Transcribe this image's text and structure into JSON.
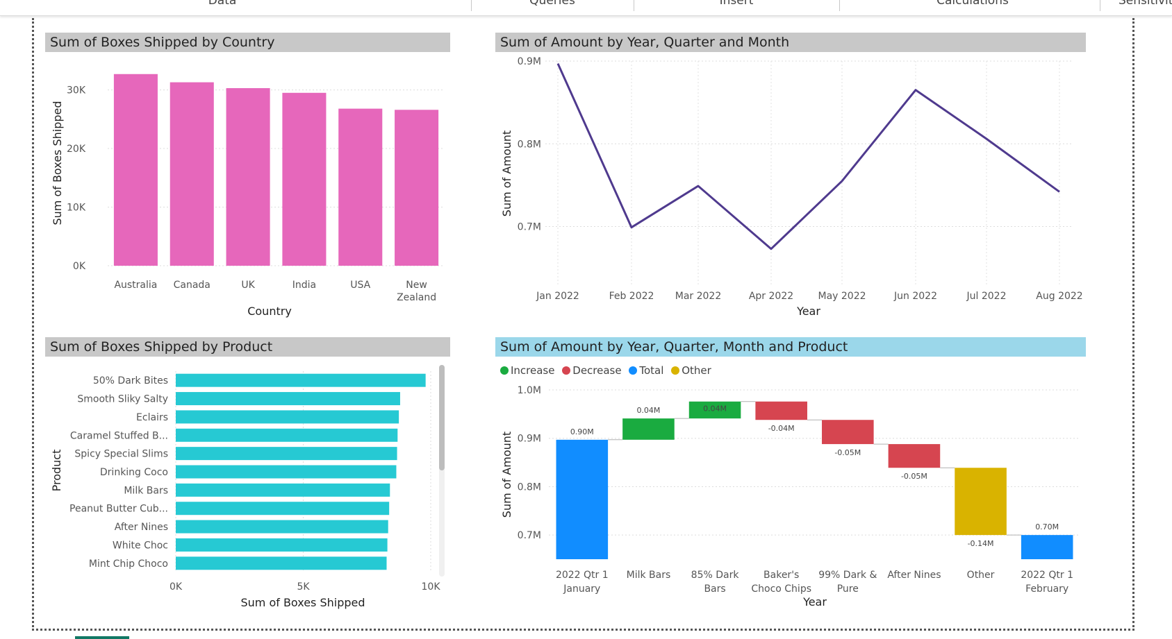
{
  "ribbon": {
    "tabs": [
      "Data",
      "Queries",
      "Insert",
      "Calculations",
      "Sensitivity"
    ]
  },
  "colors": {
    "bar_pink": "#e667bb",
    "bar_cyan": "#26c9d3",
    "line_purple": "#4f3a8e",
    "increase": "#1aab40",
    "decrease": "#d64550",
    "total": "#118dff",
    "other": "#d9b300",
    "title_grey": "#c8c8c8",
    "title_blue": "#9bd7ea"
  },
  "chart_data": [
    {
      "type": "bar",
      "title": "Sum of Boxes Shipped by Country",
      "xlabel": "Country",
      "ylabel": "Sum of Boxes Shipped",
      "categories": [
        "Australia",
        "Canada",
        "UK",
        "India",
        "USA",
        "New Zealand"
      ],
      "values": [
        32700,
        31300,
        30300,
        29500,
        26800,
        26600
      ],
      "ylim": [
        0,
        33500
      ],
      "yticks": [
        0,
        10000,
        20000,
        30000
      ],
      "ytick_labels": [
        "0K",
        "10K",
        "20K",
        "30K"
      ],
      "grid": true
    },
    {
      "type": "line",
      "title": "Sum of Amount by Year, Quarter and Month",
      "xlabel": "Year",
      "ylabel": "Sum of Amount",
      "categories": [
        "Jan 2022",
        "Feb 2022",
        "Mar 2022",
        "Apr 2022",
        "May 2022",
        "Jun 2022",
        "Jul 2022",
        "Aug 2022"
      ],
      "values": [
        0.897,
        0.699,
        0.749,
        0.673,
        0.755,
        0.865,
        0.806,
        0.742
      ],
      "ylim": [
        0.63,
        0.9
      ],
      "yticks": [
        0.7,
        0.8,
        0.9
      ],
      "ytick_labels": [
        "0.7M",
        "0.8M",
        "0.9M"
      ],
      "grid": true
    },
    {
      "type": "bar",
      "orientation": "horizontal",
      "title": "Sum of Boxes Shipped by Product",
      "xlabel": "Sum of Boxes Shipped",
      "ylabel": "Product",
      "categories": [
        "50% Dark Bites",
        "Smooth Sliky Salty",
        "Eclairs",
        "Caramel Stuffed B...",
        "Spicy Special Slims",
        "Drinking Coco",
        "Milk Bars",
        "Peanut Butter Cub...",
        "After Nines",
        "White Choc",
        "Mint Chip Choco"
      ],
      "values": [
        9800,
        8800,
        8750,
        8700,
        8680,
        8650,
        8400,
        8370,
        8330,
        8300,
        8270
      ],
      "xlim": [
        0,
        10000
      ],
      "xticks": [
        0,
        5000,
        10000
      ],
      "xtick_labels": [
        "0K",
        "5K",
        "10K"
      ],
      "grid": true
    },
    {
      "type": "waterfall",
      "title": "Sum of Amount by Year, Quarter, Month and Product",
      "xlabel": "Year",
      "ylabel": "Sum of Amount",
      "legend": [
        "Increase",
        "Decrease",
        "Total",
        "Other"
      ],
      "legend_position": "top-left",
      "categories": [
        "2022 Qtr 1 January",
        "Milk Bars",
        "85% Dark Bars",
        "Baker's Choco Chips",
        "99% Dark & Pure",
        "After Nines",
        "Other",
        "2022 Qtr 1 February"
      ],
      "category_lines": [
        [
          "2022 Qtr 1",
          "January"
        ],
        [
          "Milk Bars"
        ],
        [
          "85% Dark",
          "Bars"
        ],
        [
          "Baker's",
          "Choco Chips"
        ],
        [
          "99% Dark &",
          "Pure"
        ],
        [
          "After Nines"
        ],
        [
          "Other"
        ],
        [
          "2022 Qtr 1",
          "February"
        ]
      ],
      "kinds": [
        "total",
        "increase",
        "increase",
        "decrease",
        "decrease",
        "decrease",
        "other",
        "total"
      ],
      "values": [
        0.897,
        0.044,
        0.035,
        -0.038,
        -0.05,
        -0.049,
        -0.139,
        0.7
      ],
      "data_labels": [
        "0.90M",
        "0.04M",
        "0.04M",
        "-0.04M",
        "-0.05M",
        "-0.05M",
        "-0.14M",
        "0.70M"
      ],
      "ylim": [
        0.65,
        1.0
      ],
      "yticks": [
        0.7,
        0.8,
        0.9,
        1.0
      ],
      "ytick_labels": [
        "0.7M",
        "0.8M",
        "0.9M",
        "1.0M"
      ],
      "grid": true
    }
  ]
}
